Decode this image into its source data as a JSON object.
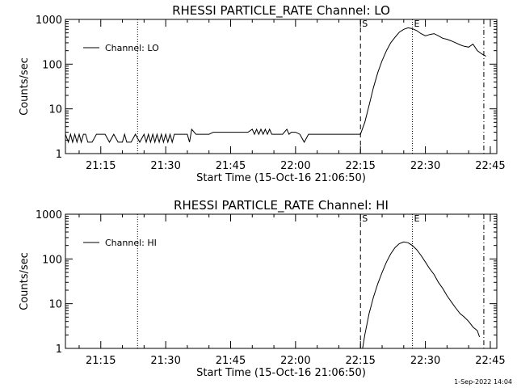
{
  "chart_data": [
    {
      "type": "line",
      "title": "RHESSI PARTICLE_RATE Channel: LO",
      "xlabel": "Start Time (15-Oct-16 21:06:50)",
      "ylabel": "Counts/sec",
      "y_scale": "log",
      "ylim": [
        1,
        1000
      ],
      "y_ticks": [
        1,
        10,
        100,
        1000
      ],
      "y_tick_labels": [
        "1",
        "10",
        "100",
        "1000"
      ],
      "xlim": [
        "21:06:50",
        "22:46:30"
      ],
      "x_ticks": [
        "21:15",
        "21:30",
        "21:45",
        "22:00",
        "22:15",
        "22:30",
        "22:45"
      ],
      "grid": false,
      "legend": {
        "position": "top-left",
        "entries": [
          "Channel: LO"
        ]
      },
      "markers": [
        {
          "time": "21:23:30",
          "style": "dotted",
          "label": ""
        },
        {
          "time": "22:15:00",
          "style": "dashed",
          "label": "S"
        },
        {
          "time": "22:27:00",
          "style": "dotted",
          "label": "E"
        },
        {
          "time": "22:43:30",
          "style": "dash-dot",
          "label": ""
        }
      ],
      "series": [
        {
          "name": "Channel: LO",
          "x": [
            "21:06:50",
            "21:07:30",
            "21:08:00",
            "21:08:30",
            "21:09:00",
            "21:09:30",
            "21:10:00",
            "21:10:30",
            "21:11:00",
            "21:11:30",
            "21:12:00",
            "21:13:00",
            "21:14:00",
            "21:15:00",
            "21:16:00",
            "21:17:00",
            "21:18:00",
            "21:19:00",
            "21:20:00",
            "21:20:30",
            "21:21:00",
            "21:22:00",
            "21:23:00",
            "21:24:00",
            "21:25:00",
            "21:25:30",
            "21:26:00",
            "21:26:30",
            "21:27:00",
            "21:27:30",
            "21:28:00",
            "21:28:30",
            "21:29:00",
            "21:29:30",
            "21:30:00",
            "21:30:30",
            "21:31:00",
            "21:31:30",
            "21:32:00",
            "21:33:00",
            "21:34:00",
            "21:35:00",
            "21:35:30",
            "21:36:00",
            "21:37:00",
            "21:38:00",
            "21:39:00",
            "21:40:00",
            "21:41:00",
            "21:42:00",
            "21:43:00",
            "21:44:00",
            "21:45:00",
            "21:46:00",
            "21:47:00",
            "21:48:00",
            "21:49:00",
            "21:50:00",
            "21:50:30",
            "21:51:00",
            "21:51:30",
            "21:52:00",
            "21:52:30",
            "21:53:00",
            "21:53:30",
            "21:54:00",
            "21:54:30",
            "21:55:00",
            "21:56:00",
            "21:57:00",
            "21:58:00",
            "21:58:30",
            "21:59:00",
            "22:00:00",
            "22:01:00",
            "22:02:00",
            "22:03:00",
            "22:04:00",
            "22:05:00",
            "22:06:00",
            "22:07:00",
            "22:08:00",
            "22:09:00",
            "22:10:00",
            "22:11:00",
            "22:12:00",
            "22:13:00",
            "22:14:00",
            "22:15:00",
            "22:16:00",
            "22:17:00",
            "22:18:00",
            "22:19:00",
            "22:20:00",
            "22:21:00",
            "22:22:00",
            "22:23:00",
            "22:24:00",
            "22:25:00",
            "22:26:00",
            "22:27:00",
            "22:28:00",
            "22:29:00",
            "22:30:00",
            "22:31:00",
            "22:32:00",
            "22:33:00",
            "22:34:00",
            "22:35:00",
            "22:36:00",
            "22:37:00",
            "22:38:00",
            "22:39:00",
            "22:40:00",
            "22:41:00",
            "22:42:00",
            "22:43:00",
            "22:44:00"
          ],
          "y": [
            2.7,
            1.8,
            2.7,
            1.8,
            2.7,
            1.8,
            2.7,
            1.8,
            2.7,
            2.7,
            1.8,
            1.8,
            2.7,
            2.7,
            2.7,
            1.8,
            2.7,
            1.8,
            1.8,
            2.7,
            1.8,
            1.8,
            2.7,
            1.8,
            2.7,
            1.8,
            2.7,
            1.8,
            2.7,
            1.8,
            2.7,
            1.8,
            2.7,
            1.8,
            2.7,
            1.8,
            2.7,
            1.8,
            2.7,
            2.7,
            2.7,
            2.7,
            1.8,
            3.5,
            2.7,
            2.7,
            2.7,
            2.7,
            3.0,
            3.0,
            3.0,
            3.0,
            3.0,
            3.0,
            3.0,
            3.0,
            3.0,
            3.5,
            2.7,
            3.5,
            2.7,
            3.5,
            2.7,
            3.5,
            2.7,
            3.5,
            2.7,
            2.7,
            2.7,
            2.7,
            3.5,
            2.7,
            3.0,
            3.0,
            2.7,
            1.8,
            2.7,
            2.7,
            2.7,
            2.7,
            2.7,
            2.7,
            2.7,
            2.7,
            2.7,
            2.7,
            2.7,
            2.7,
            2.7,
            5.0,
            12,
            30,
            65,
            120,
            200,
            300,
            400,
            520,
            600,
            650,
            620,
            560,
            480,
            430,
            460,
            480,
            430,
            380,
            360,
            330,
            300,
            270,
            250,
            240,
            280,
            200,
            170,
            150
          ]
        }
      ]
    },
    {
      "type": "line",
      "title": "RHESSI PARTICLE_RATE Channel: HI",
      "xlabel": "Start Time (15-Oct-16 21:06:50)",
      "ylabel": "Counts/sec",
      "y_scale": "log",
      "ylim": [
        1,
        1000
      ],
      "y_ticks": [
        1,
        10,
        100,
        1000
      ],
      "y_tick_labels": [
        "1",
        "10",
        "100",
        "1000"
      ],
      "xlim": [
        "21:06:50",
        "22:46:30"
      ],
      "x_ticks": [
        "21:15",
        "21:30",
        "21:45",
        "22:00",
        "22:15",
        "22:30",
        "22:45"
      ],
      "grid": false,
      "legend": {
        "position": "top-left",
        "entries": [
          "Channel: HI"
        ]
      },
      "markers": [
        {
          "time": "21:23:30",
          "style": "dotted",
          "label": ""
        },
        {
          "time": "22:15:00",
          "style": "dashed",
          "label": "S"
        },
        {
          "time": "22:27:00",
          "style": "dotted",
          "label": "E"
        },
        {
          "time": "22:43:30",
          "style": "dash-dot",
          "label": ""
        }
      ],
      "series": [
        {
          "name": "Channel: HI",
          "x": [
            "22:15:30",
            "22:16:00",
            "22:17:00",
            "22:18:00",
            "22:19:00",
            "22:20:00",
            "22:21:00",
            "22:22:00",
            "22:23:00",
            "22:24:00",
            "22:25:00",
            "22:26:00",
            "22:27:00",
            "22:28:00",
            "22:29:00",
            "22:30:00",
            "22:31:00",
            "22:32:00",
            "22:33:00",
            "22:34:00",
            "22:35:00",
            "22:36:00",
            "22:37:00",
            "22:38:00",
            "22:39:00",
            "22:40:00",
            "22:41:00",
            "22:42:00",
            "22:42:30"
          ],
          "y": [
            1.0,
            2.0,
            6.0,
            14,
            28,
            50,
            85,
            130,
            180,
            220,
            240,
            230,
            200,
            160,
            120,
            85,
            60,
            45,
            30,
            22,
            15,
            11,
            8,
            6,
            5,
            4,
            3,
            2.5,
            1.8
          ]
        }
      ]
    }
  ],
  "footer": {
    "date_stamp": "1-Sep-2022 14:04"
  }
}
